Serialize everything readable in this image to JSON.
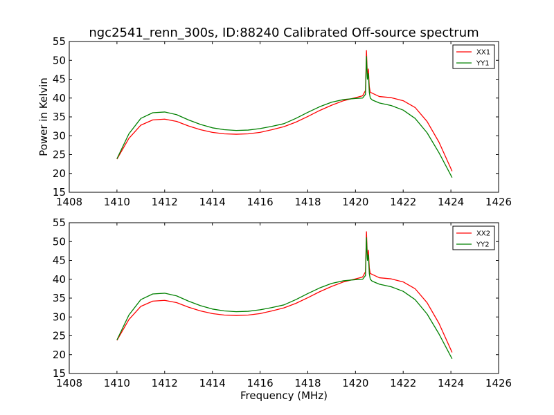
{
  "figure": {
    "title": "ngc2541_renn_300s, ID:88240 Calibrated Off-source spectrum"
  },
  "chart_data": [
    {
      "type": "line",
      "title": "ngc2541_renn_300s, ID:88240 Calibrated Off-source spectrum",
      "xlabel": "",
      "ylabel": "Power in Kelvin",
      "xlim": [
        1408,
        1426
      ],
      "ylim": [
        15,
        55
      ],
      "xticks": [
        1408,
        1410,
        1412,
        1414,
        1416,
        1418,
        1420,
        1422,
        1424,
        1426
      ],
      "yticks": [
        15,
        20,
        25,
        30,
        35,
        40,
        45,
        50,
        55
      ],
      "grid": false,
      "legend_position": "top-right",
      "series": [
        {
          "name": "XX1",
          "color": "#ff0000",
          "x": [
            1410.0,
            1410.5,
            1411.0,
            1411.5,
            1412.0,
            1412.5,
            1413.0,
            1413.5,
            1414.0,
            1414.5,
            1415.0,
            1415.5,
            1416.0,
            1416.5,
            1417.0,
            1417.5,
            1418.0,
            1418.5,
            1419.0,
            1419.5,
            1420.0,
            1420.3,
            1420.42,
            1420.46,
            1420.5,
            1420.54,
            1420.58,
            1420.62,
            1420.7,
            1421.0,
            1421.5,
            1422.0,
            1422.5,
            1423.0,
            1423.5,
            1424.05
          ],
          "y": [
            23.8,
            29.3,
            32.8,
            34.2,
            34.4,
            33.8,
            32.6,
            31.6,
            30.9,
            30.5,
            30.4,
            30.5,
            30.9,
            31.6,
            32.4,
            33.6,
            35.1,
            36.7,
            38.1,
            39.3,
            40.1,
            40.6,
            42.0,
            52.6,
            45.5,
            47.7,
            43.0,
            41.5,
            41.3,
            40.4,
            40.1,
            39.3,
            37.5,
            33.8,
            28.3,
            20.6
          ]
        },
        {
          "name": "YY1",
          "color": "#008000",
          "x": [
            1410.0,
            1410.5,
            1411.0,
            1411.5,
            1412.0,
            1412.5,
            1413.0,
            1413.5,
            1414.0,
            1414.5,
            1415.0,
            1415.5,
            1416.0,
            1416.5,
            1417.0,
            1417.5,
            1418.0,
            1418.5,
            1419.0,
            1419.5,
            1420.0,
            1420.3,
            1420.42,
            1420.46,
            1420.5,
            1420.54,
            1420.58,
            1420.62,
            1420.7,
            1421.0,
            1421.5,
            1422.0,
            1422.5,
            1423.0,
            1423.5,
            1424.05
          ],
          "y": [
            23.9,
            30.5,
            34.6,
            36.1,
            36.3,
            35.6,
            34.2,
            33.0,
            32.1,
            31.6,
            31.4,
            31.5,
            31.9,
            32.5,
            33.2,
            34.6,
            36.2,
            37.7,
            38.9,
            39.6,
            39.9,
            40.0,
            41.0,
            51.0,
            45.0,
            46.5,
            41.5,
            40.0,
            39.5,
            38.7,
            38.0,
            36.8,
            34.6,
            30.8,
            25.5,
            18.9
          ]
        }
      ]
    },
    {
      "type": "line",
      "title": "",
      "xlabel": "Frequency (MHz)",
      "ylabel": "",
      "xlim": [
        1408,
        1426
      ],
      "ylim": [
        15,
        55
      ],
      "xticks": [
        1408,
        1410,
        1412,
        1414,
        1416,
        1418,
        1420,
        1422,
        1424,
        1426
      ],
      "yticks": [
        15,
        20,
        25,
        30,
        35,
        40,
        45,
        50,
        55
      ],
      "grid": false,
      "legend_position": "top-right",
      "series": [
        {
          "name": "XX2",
          "color": "#ff0000",
          "x": [
            1410.0,
            1410.5,
            1411.0,
            1411.5,
            1412.0,
            1412.5,
            1413.0,
            1413.5,
            1414.0,
            1414.5,
            1415.0,
            1415.5,
            1416.0,
            1416.5,
            1417.0,
            1417.5,
            1418.0,
            1418.5,
            1419.0,
            1419.5,
            1420.0,
            1420.3,
            1420.42,
            1420.46,
            1420.5,
            1420.54,
            1420.58,
            1420.62,
            1420.7,
            1421.0,
            1421.5,
            1422.0,
            1422.5,
            1423.0,
            1423.5,
            1424.05
          ],
          "y": [
            23.8,
            29.3,
            32.8,
            34.2,
            34.4,
            33.8,
            32.6,
            31.6,
            30.9,
            30.5,
            30.4,
            30.5,
            30.9,
            31.6,
            32.4,
            33.6,
            35.1,
            36.7,
            38.1,
            39.3,
            40.1,
            40.6,
            42.0,
            52.6,
            45.5,
            47.7,
            43.0,
            41.5,
            41.3,
            40.4,
            40.1,
            39.3,
            37.5,
            33.8,
            28.3,
            20.6
          ]
        },
        {
          "name": "YY2",
          "color": "#008000",
          "x": [
            1410.0,
            1410.5,
            1411.0,
            1411.5,
            1412.0,
            1412.5,
            1413.0,
            1413.5,
            1414.0,
            1414.5,
            1415.0,
            1415.5,
            1416.0,
            1416.5,
            1417.0,
            1417.5,
            1418.0,
            1418.5,
            1419.0,
            1419.5,
            1420.0,
            1420.3,
            1420.42,
            1420.46,
            1420.5,
            1420.54,
            1420.58,
            1420.62,
            1420.7,
            1421.0,
            1421.5,
            1422.0,
            1422.5,
            1423.0,
            1423.5,
            1424.05
          ],
          "y": [
            23.9,
            30.5,
            34.6,
            36.1,
            36.3,
            35.6,
            34.2,
            33.0,
            32.1,
            31.6,
            31.4,
            31.5,
            31.9,
            32.5,
            33.2,
            34.6,
            36.2,
            37.7,
            38.9,
            39.6,
            39.9,
            40.0,
            41.0,
            51.0,
            45.0,
            46.5,
            41.5,
            40.0,
            39.5,
            38.7,
            38.0,
            36.8,
            34.6,
            30.8,
            25.5,
            18.9
          ]
        }
      ]
    }
  ]
}
